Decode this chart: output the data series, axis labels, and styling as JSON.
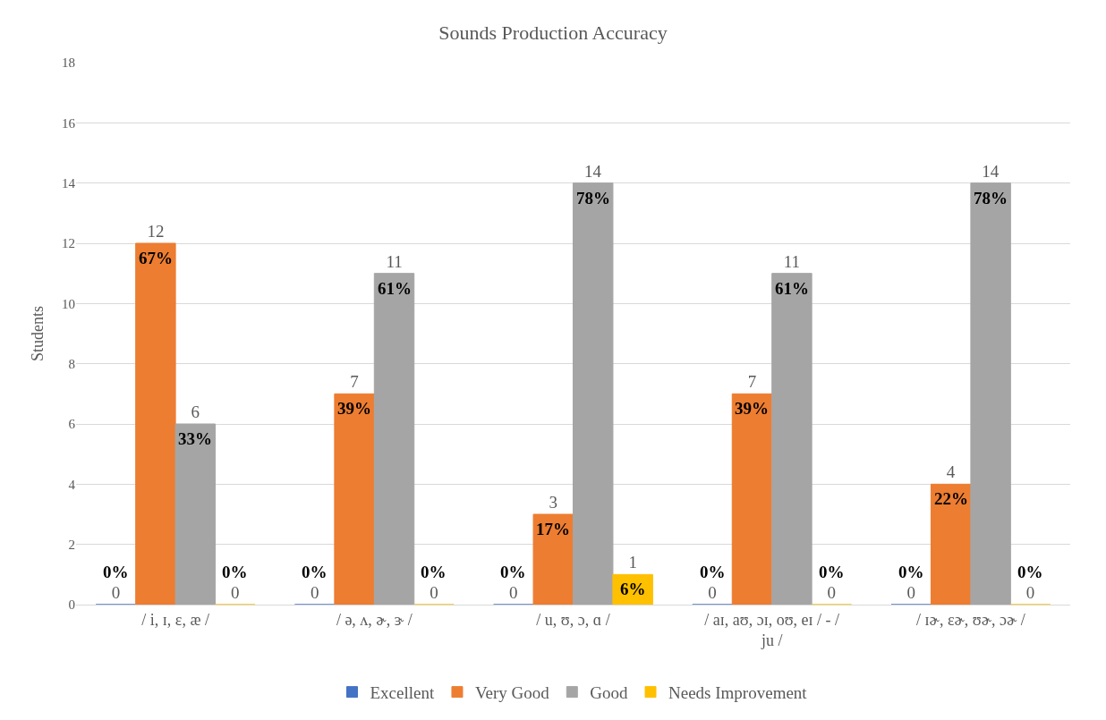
{
  "chart_data": {
    "type": "bar",
    "title": "Sounds Production Accuracy",
    "ylabel": "Students",
    "categories": [
      "/ i, ɪ, ɛ, æ /",
      "/ ə, ʌ, ɚ, ɝ /",
      "/ u, ʊ, ɔ, ɑ /",
      "/ aɪ, aʊ, ɔɪ, oʊ, eɪ / - / ju /",
      "/ ɪɚ, ɛɚ, ʊɚ, ɔɚ /"
    ],
    "series": [
      {
        "name": "Excellent",
        "color": "#4472c4",
        "values": [
          0,
          0,
          0,
          0,
          0
        ]
      },
      {
        "name": "Very Good",
        "color": "#ed7d31",
        "values": [
          12,
          7,
          3,
          7,
          4
        ]
      },
      {
        "name": "Good",
        "color": "#a5a5a5",
        "values": [
          6,
          11,
          14,
          11,
          14
        ]
      },
      {
        "name": "Needs Improvement",
        "color": "#ffc000",
        "values": [
          0,
          0,
          1,
          0,
          0
        ]
      }
    ],
    "annotations": [
      "0%",
      "0%",
      "0%",
      "0%",
      "0%",
      "67%",
      "39%",
      "17%",
      "39%",
      "22%",
      "33%",
      "61%",
      "78%",
      "61%",
      "78%",
      "0%",
      "0%",
      "6%",
      "0%",
      "0%"
    ],
    "ylim": [
      0,
      18
    ],
    "yticks": [
      0,
      2,
      4,
      6,
      8,
      10,
      12,
      14,
      16,
      18
    ],
    "grid": "y",
    "legend": "bottom",
    "data_labels": true
  }
}
